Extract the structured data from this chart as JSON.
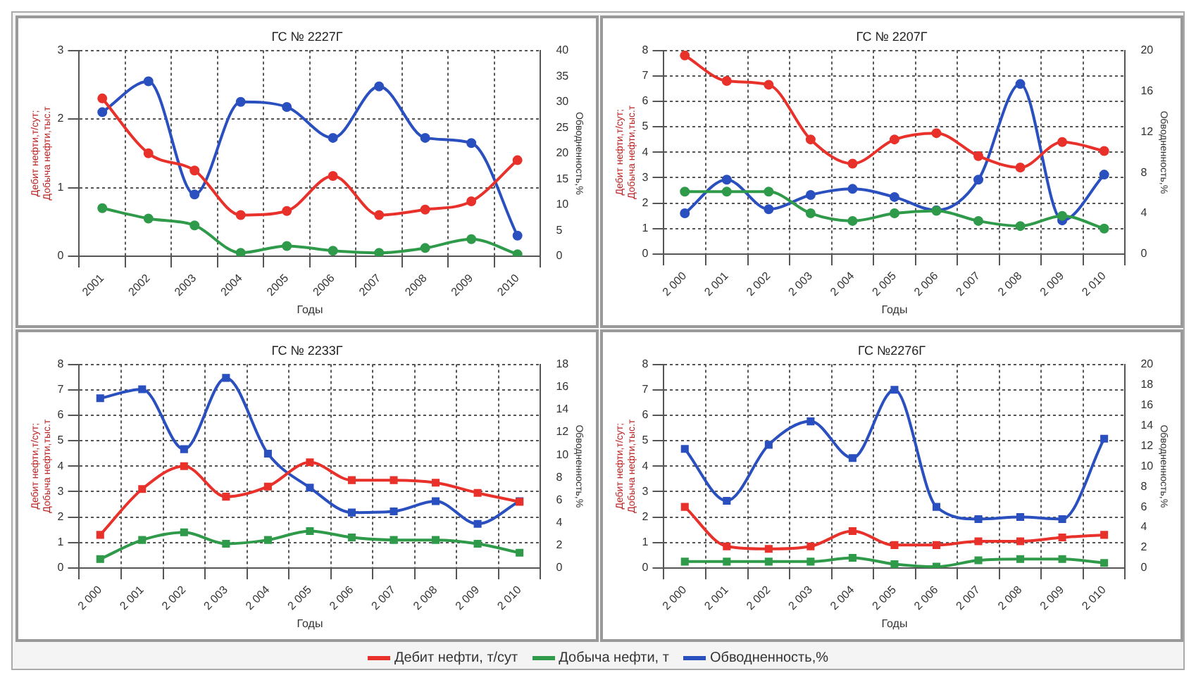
{
  "chart_data": [
    {
      "type": "line",
      "title": "ГС № 2227Г",
      "xlabel": "Годы",
      "ylabel": "Дебит нефти,т/сут;\nДобыча нефти,тыс.т",
      "y2label": "Обводненность,%",
      "categories": [
        "2001",
        "2002",
        "2003",
        "2004",
        "2005",
        "2006",
        "2007",
        "2008",
        "2009",
        "2010"
      ],
      "ylim": [
        0,
        3
      ],
      "yticks": [
        0,
        1,
        2,
        3
      ],
      "y2lim": [
        0,
        40
      ],
      "y2ticks": [
        0,
        5,
        10,
        15,
        20,
        25,
        30,
        35,
        40
      ],
      "grid": true,
      "legend": false,
      "marker": "circle",
      "series": [
        {
          "color": "#e8312a",
          "values": [
            2.3,
            1.5,
            1.25,
            0.6,
            0.66,
            1.17,
            0.6,
            0.68,
            0.8,
            1.4
          ]
        },
        {
          "color": "#2e9a4a",
          "values": [
            0.7,
            0.55,
            0.45,
            0.05,
            0.15,
            0.08,
            0.05,
            0.12,
            0.25,
            0.03
          ]
        },
        {
          "color": "#2a4fbf",
          "axis": "y2",
          "values": [
            28,
            34,
            12,
            30,
            29,
            23,
            33,
            23,
            22,
            4
          ]
        }
      ]
    },
    {
      "type": "line",
      "title": "ГС № 2207Г",
      "xlabel": "Годы",
      "ylabel": "Дебит нефти,т/сут;\nДобыча нефти,тыс.т",
      "y2label": "Обводненность,%",
      "categories": [
        "2 000",
        "2 001",
        "2 002",
        "2 003",
        "2 004",
        "2 005",
        "2 006",
        "2 007",
        "2 008",
        "2 009",
        "2 010"
      ],
      "ylim": [
        0,
        8
      ],
      "yticks": [
        0,
        1,
        2,
        3,
        4,
        5,
        6,
        7,
        8
      ],
      "y2lim": [
        0,
        20
      ],
      "y2ticks": [
        0,
        4,
        8,
        12,
        16,
        20
      ],
      "grid": true,
      "legend": false,
      "marker": "circle",
      "series": [
        {
          "color": "#e8312a",
          "values": [
            7.8,
            6.8,
            6.65,
            4.5,
            3.55,
            4.5,
            4.75,
            3.85,
            3.4,
            4.4,
            4.05
          ]
        },
        {
          "color": "#2e9a4a",
          "values": [
            2.45,
            2.45,
            2.45,
            1.6,
            1.3,
            1.6,
            1.7,
            1.3,
            1.1,
            1.5,
            1.0
          ]
        },
        {
          "color": "#2a4fbf",
          "axis": "y2",
          "values": [
            4.0,
            7.3,
            4.4,
            5.8,
            6.4,
            5.6,
            4.3,
            7.3,
            16.7,
            3.3,
            7.8
          ]
        }
      ]
    },
    {
      "type": "line",
      "title": "ГС № 2233Г",
      "xlabel": "Годы",
      "ylabel": "Дебит нефти,т/сут;\nДобыча нефти,тыс.т",
      "y2label": "Обводненность,%",
      "categories": [
        "2 000",
        "2 001",
        "2 002",
        "2 003",
        "2 004",
        "2 005",
        "2 006",
        "2 007",
        "2 008",
        "2 009",
        "2 010"
      ],
      "ylim": [
        0,
        8
      ],
      "yticks": [
        0,
        1,
        2,
        3,
        4,
        5,
        6,
        7,
        8
      ],
      "y2lim": [
        0,
        18
      ],
      "y2ticks": [
        0,
        2,
        4,
        6,
        8,
        10,
        12,
        14,
        16,
        18
      ],
      "grid": true,
      "legend": false,
      "marker": "square",
      "series": [
        {
          "color": "#e8312a",
          "values": [
            1.3,
            3.1,
            4.0,
            2.8,
            3.2,
            4.15,
            3.45,
            3.45,
            3.35,
            2.95,
            2.6
          ]
        },
        {
          "color": "#2e9a4a",
          "values": [
            0.35,
            1.1,
            1.4,
            0.95,
            1.1,
            1.45,
            1.2,
            1.1,
            1.1,
            0.95,
            0.6
          ]
        },
        {
          "color": "#2a4fbf",
          "axis": "y2",
          "values": [
            15.0,
            15.8,
            10.5,
            16.8,
            10.1,
            7.1,
            4.9,
            5.0,
            5.9,
            3.9,
            5.9
          ]
        }
      ]
    },
    {
      "type": "line",
      "title": "ГС №2276Г",
      "xlabel": "Годы",
      "ylabel": "Дебит нефти,т/сут;\nДобыча нефти,тыс.т",
      "y2label": "Обводненность,%",
      "categories": [
        "2 000",
        "2 001",
        "2 002",
        "2 003",
        "2 004",
        "2 005",
        "2 006",
        "2 007",
        "2 008",
        "2 009",
        "2 010"
      ],
      "ylim": [
        0,
        8
      ],
      "yticks": [
        0,
        1,
        2,
        3,
        4,
        5,
        6,
        7,
        8
      ],
      "y2lim": [
        0,
        20
      ],
      "y2ticks": [
        0,
        2,
        4,
        6,
        8,
        10,
        12,
        14,
        16,
        18,
        20
      ],
      "grid": true,
      "legend": "bottom",
      "marker": "square",
      "series": [
        {
          "name": "Дебит нефти, т/сут",
          "color": "#e8312a",
          "values": [
            2.4,
            0.85,
            0.75,
            0.85,
            1.45,
            0.9,
            0.9,
            1.05,
            1.05,
            1.2,
            1.3
          ]
        },
        {
          "name": "Добыча нефти, т",
          "color": "#2e9a4a",
          "values": [
            0.25,
            0.25,
            0.25,
            0.25,
            0.4,
            0.15,
            0.05,
            0.3,
            0.35,
            0.35,
            0.2
          ]
        },
        {
          "name": "Обводненность,%",
          "color": "#2a4fbf",
          "axis": "y2",
          "values": [
            11.7,
            6.6,
            12.1,
            14.4,
            10.8,
            17.5,
            6.0,
            4.8,
            5.0,
            4.8,
            12.7
          ]
        }
      ]
    }
  ]
}
